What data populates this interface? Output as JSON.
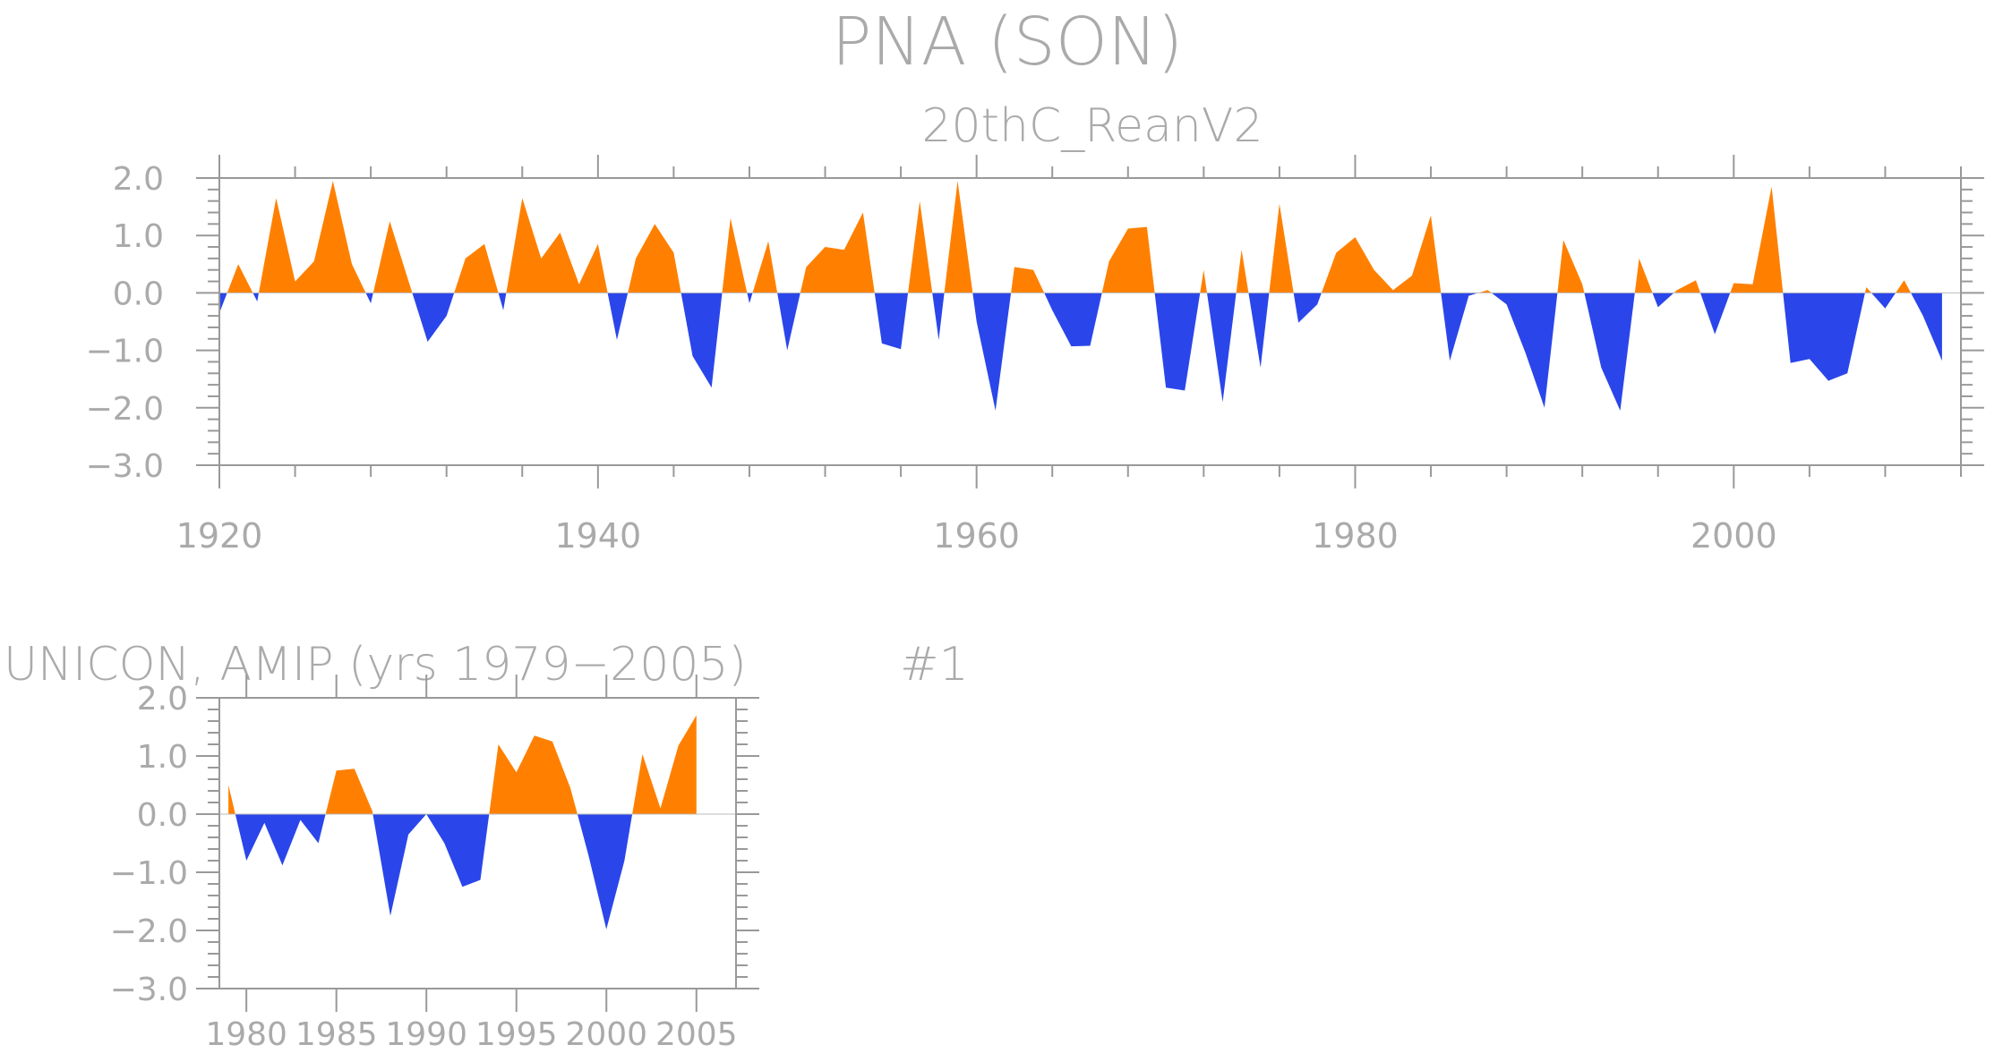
{
  "figure": {
    "main_title": "PNA (SON)",
    "colors": {
      "positive": "#ff8000",
      "negative": "#2a46ea",
      "text": "#aaaaaa",
      "axis": "#999999"
    }
  },
  "chart_data": [
    {
      "type": "area",
      "title": "20thC_ReanV2",
      "ylim": [
        -3.0,
        2.0
      ],
      "xlim": [
        1920,
        2012
      ],
      "yticks": [
        "2.0",
        "1.0",
        "0.0",
        "−1.0",
        "−2.0",
        "−3.0"
      ],
      "xticks": [
        "1920",
        "1940",
        "1960",
        "1980",
        "2000"
      ],
      "x": [
        1920,
        1921,
        1922,
        1923,
        1924,
        1925,
        1926,
        1927,
        1928,
        1929,
        1930,
        1931,
        1932,
        1933,
        1934,
        1935,
        1936,
        1937,
        1938,
        1939,
        1940,
        1941,
        1942,
        1943,
        1944,
        1945,
        1946,
        1947,
        1948,
        1949,
        1950,
        1951,
        1952,
        1953,
        1954,
        1955,
        1956,
        1957,
        1958,
        1959,
        1960,
        1961,
        1962,
        1963,
        1964,
        1965,
        1966,
        1967,
        1968,
        1969,
        1970,
        1971,
        1972,
        1973,
        1974,
        1975,
        1976,
        1977,
        1978,
        1979,
        1980,
        1981,
        1982,
        1983,
        1984,
        1985,
        1986,
        1987,
        1988,
        1989,
        1990,
        1991,
        1992,
        1993,
        1994,
        1995,
        1996,
        1997,
        1998,
        1999,
        2000,
        2001,
        2002,
        2003,
        2004,
        2005,
        2006,
        2007,
        2008,
        2009,
        2010,
        2011
      ],
      "values": [
        -0.35,
        0.5,
        -0.15,
        1.65,
        0.2,
        0.55,
        1.95,
        0.5,
        -0.18,
        1.25,
        0.2,
        -0.85,
        -0.4,
        0.6,
        0.85,
        -0.3,
        1.65,
        0.6,
        1.05,
        0.15,
        0.85,
        -0.82,
        0.6,
        1.2,
        0.7,
        -1.1,
        -1.65,
        1.3,
        -0.18,
        0.9,
        -1.0,
        0.45,
        0.8,
        0.75,
        1.4,
        -0.88,
        -0.98,
        1.6,
        -0.82,
        1.95,
        -0.5,
        -2.05,
        0.45,
        0.4,
        -0.3,
        -0.93,
        -0.92,
        0.55,
        1.12,
        1.15,
        -1.65,
        -1.7,
        0.4,
        -1.9,
        0.75,
        -1.3,
        1.55,
        -0.52,
        -0.2,
        0.7,
        0.97,
        0.4,
        0.05,
        0.3,
        1.35,
        -1.18,
        -0.05,
        0.05,
        -0.2,
        -1.05,
        -2.0,
        0.92,
        0.15,
        -1.3,
        -2.05,
        0.6,
        -0.25,
        0.05,
        0.22,
        -0.72,
        0.17,
        0.15,
        1.85,
        -1.22,
        -1.15,
        -1.53,
        -1.4,
        0.1,
        -0.27,
        0.22,
        -0.4,
        -1.18
      ]
    },
    {
      "type": "area",
      "title": "UNICON, AMIP (yrs 1979−2005)",
      "subtitle": "#1",
      "ylim": [
        -3.0,
        2.0
      ],
      "xlim": [
        1978.5,
        2007.2
      ],
      "yticks": [
        "2.0",
        "1.0",
        "0.0",
        "−1.0",
        "−2.0",
        "−3.0"
      ],
      "xticks": [
        "1980",
        "1985",
        "1990",
        "1995",
        "2000",
        "2005"
      ],
      "x": [
        1979,
        1980,
        1981,
        1982,
        1983,
        1984,
        1985,
        1986,
        1987,
        1988,
        1989,
        1990,
        1991,
        1992,
        1993,
        1994,
        1995,
        1996,
        1997,
        1998,
        1999,
        2000,
        2001,
        2002,
        2003,
        2004,
        2005
      ],
      "values": [
        0.5,
        -0.8,
        -0.15,
        -0.88,
        -0.1,
        -0.5,
        0.75,
        0.78,
        0.05,
        -1.75,
        -0.35,
        0.0,
        -0.5,
        -1.25,
        -1.13,
        1.2,
        0.72,
        1.35,
        1.25,
        0.45,
        -0.7,
        -1.98,
        -0.8,
        1.03,
        0.1,
        1.18,
        1.7
      ]
    }
  ]
}
